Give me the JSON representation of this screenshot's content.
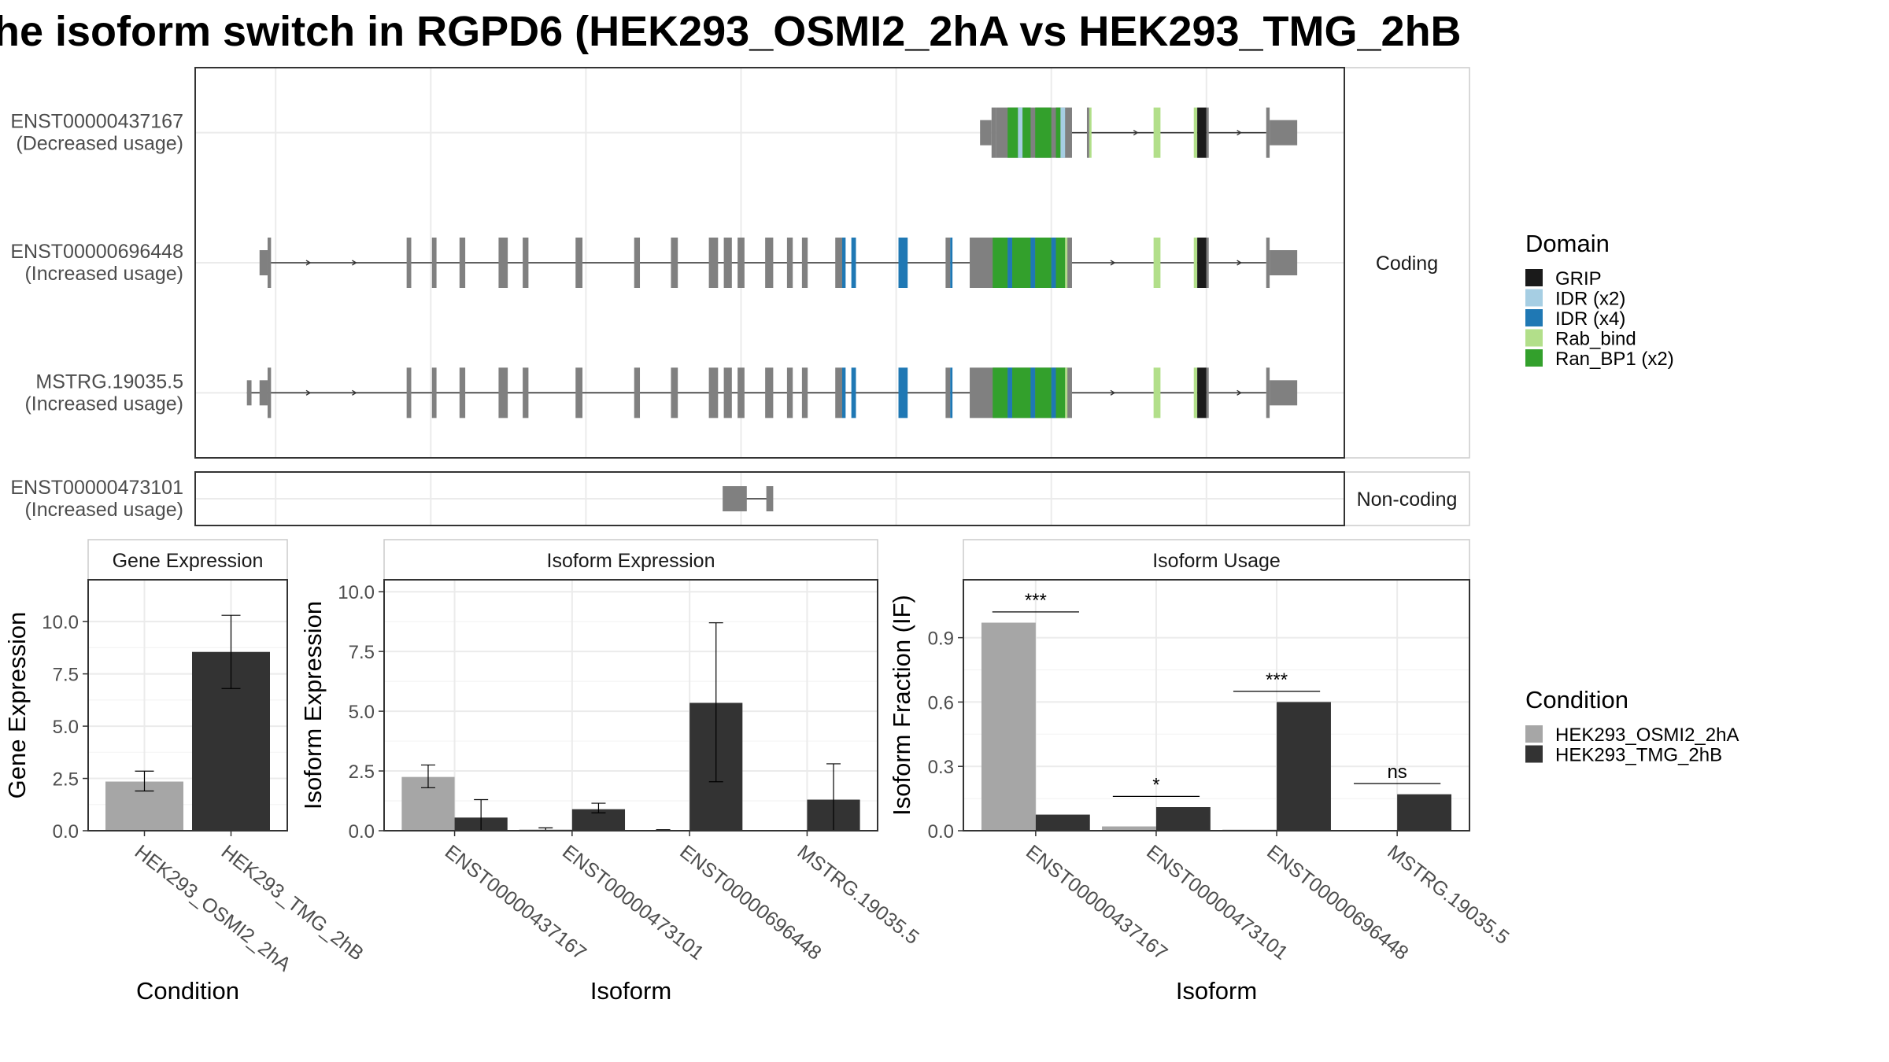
{
  "title": "he isoform switch in RGPD6 (HEK293_OSMI2_2hA vs HEK293_TMG_2hB",
  "colors": {
    "structure": "#808080",
    "cond_a": "#a6a6a6",
    "cond_b": "#333333",
    "panel_border": "#333333",
    "grid": "#ebebeb",
    "strip_bg": "#ffffff"
  },
  "legends": {
    "domain": {
      "title": "Domain",
      "items": [
        {
          "label": "GRIP",
          "color": "#1a1a1a"
        },
        {
          "label": "IDR (x2)",
          "color": "#a6cee3"
        },
        {
          "label": "IDR (x4)",
          "color": "#1f78b4"
        },
        {
          "label": "Rab_bind",
          "color": "#b2df8a"
        },
        {
          "label": "Ran_BP1 (x2)",
          "color": "#33a02c"
        }
      ]
    },
    "condition": {
      "title": "Condition",
      "items": [
        {
          "label": "HEK293_OSMI2_2hA",
          "color": "#a6a6a6"
        },
        {
          "label": "HEK293_TMG_2hB",
          "color": "#333333"
        }
      ]
    }
  },
  "chart_data": [
    {
      "type": "gene_structure",
      "facets": [
        "Coding",
        "Non-coding"
      ],
      "x_gridlines": [
        0.07,
        0.205,
        0.34,
        0.475,
        0.61,
        0.745,
        0.88
      ],
      "transcripts": [
        {
          "id": "ENST00000437167",
          "label": "ENST00000437167",
          "usage": "(Decreased usage)",
          "facet": "Coding",
          "line": [
            0.703,
            0.932
          ],
          "arrows": [
            0.82,
            0.91
          ],
          "blocks": [
            {
              "x0": 0.683,
              "x1": 0.693,
              "h": "utr",
              "c": "structure"
            },
            {
              "x0": 0.693,
              "x1": 0.697,
              "h": "cds",
              "c": "structure"
            },
            {
              "x0": 0.697,
              "x1": 0.763,
              "h": "cds",
              "c": "structure"
            },
            {
              "x0": 0.707,
              "x1": 0.716,
              "h": "cds",
              "c": "ran"
            },
            {
              "x0": 0.716,
              "x1": 0.72,
              "h": "cds",
              "c": "idr2"
            },
            {
              "x0": 0.72,
              "x1": 0.727,
              "h": "cds",
              "c": "ran"
            },
            {
              "x0": 0.731,
              "x1": 0.745,
              "h": "cds",
              "c": "ran"
            },
            {
              "x0": 0.749,
              "x1": 0.753,
              "h": "cds",
              "c": "ran"
            },
            {
              "x0": 0.753,
              "x1": 0.757,
              "h": "cds",
              "c": "idr2"
            },
            {
              "x0": 0.776,
              "x1": 0.778,
              "h": "cds",
              "c": "structure"
            },
            {
              "x0": 0.778,
              "x1": 0.78,
              "h": "cds",
              "c": "rab"
            },
            {
              "x0": 0.834,
              "x1": 0.84,
              "h": "cds",
              "c": "rab"
            },
            {
              "x0": 0.869,
              "x1": 0.872,
              "h": "cds",
              "c": "rab"
            },
            {
              "x0": 0.872,
              "x1": 0.88,
              "h": "cds",
              "c": "grip"
            },
            {
              "x0": 0.88,
              "x1": 0.882,
              "h": "cds",
              "c": "structure"
            },
            {
              "x0": 0.932,
              "x1": 0.935,
              "h": "cds",
              "c": "structure"
            },
            {
              "x0": 0.935,
              "x1": 0.959,
              "h": "utr",
              "c": "structure"
            }
          ]
        },
        {
          "id": "ENST00000696448",
          "label": "ENST00000696448",
          "usage": "(Increased usage)",
          "facet": "Coding",
          "line": [
            0.063,
            0.932
          ],
          "arrows": [
            0.1,
            0.14,
            0.8,
            0.84,
            0.91
          ],
          "blocks": [
            {
              "x0": 0.056,
              "x1": 0.063,
              "h": "utr",
              "c": "structure"
            },
            {
              "x0": 0.063,
              "x1": 0.066,
              "h": "cds",
              "c": "structure"
            },
            {
              "x0": 0.184,
              "x1": 0.188,
              "h": "cds",
              "c": "structure"
            },
            {
              "x0": 0.206,
              "x1": 0.21,
              "h": "cds",
              "c": "structure"
            },
            {
              "x0": 0.23,
              "x1": 0.235,
              "h": "cds",
              "c": "structure"
            },
            {
              "x0": 0.264,
              "x1": 0.272,
              "h": "cds",
              "c": "structure"
            },
            {
              "x0": 0.285,
              "x1": 0.29,
              "h": "cds",
              "c": "structure"
            },
            {
              "x0": 0.331,
              "x1": 0.337,
              "h": "cds",
              "c": "structure"
            },
            {
              "x0": 0.382,
              "x1": 0.387,
              "h": "cds",
              "c": "structure"
            },
            {
              "x0": 0.414,
              "x1": 0.42,
              "h": "cds",
              "c": "structure"
            },
            {
              "x0": 0.447,
              "x1": 0.455,
              "h": "cds",
              "c": "structure"
            },
            {
              "x0": 0.46,
              "x1": 0.467,
              "h": "cds",
              "c": "structure"
            },
            {
              "x0": 0.472,
              "x1": 0.478,
              "h": "cds",
              "c": "structure"
            },
            {
              "x0": 0.496,
              "x1": 0.503,
              "h": "cds",
              "c": "structure"
            },
            {
              "x0": 0.515,
              "x1": 0.52,
              "h": "cds",
              "c": "structure"
            },
            {
              "x0": 0.528,
              "x1": 0.533,
              "h": "cds",
              "c": "structure"
            },
            {
              "x0": 0.557,
              "x1": 0.563,
              "h": "cds",
              "c": "structure"
            },
            {
              "x0": 0.563,
              "x1": 0.566,
              "h": "cds",
              "c": "idr4"
            },
            {
              "x0": 0.571,
              "x1": 0.575,
              "h": "cds",
              "c": "idr4"
            },
            {
              "x0": 0.612,
              "x1": 0.62,
              "h": "cds",
              "c": "idr4"
            },
            {
              "x0": 0.653,
              "x1": 0.657,
              "h": "cds",
              "c": "structure"
            },
            {
              "x0": 0.657,
              "x1": 0.659,
              "h": "cds",
              "c": "idr4"
            },
            {
              "x0": 0.674,
              "x1": 0.763,
              "h": "cds",
              "c": "structure"
            },
            {
              "x0": 0.694,
              "x1": 0.707,
              "h": "cds",
              "c": "ran"
            },
            {
              "x0": 0.707,
              "x1": 0.711,
              "h": "cds",
              "c": "idr4"
            },
            {
              "x0": 0.711,
              "x1": 0.727,
              "h": "cds",
              "c": "ran"
            },
            {
              "x0": 0.727,
              "x1": 0.731,
              "h": "cds",
              "c": "idr4"
            },
            {
              "x0": 0.731,
              "x1": 0.745,
              "h": "cds",
              "c": "ran"
            },
            {
              "x0": 0.745,
              "x1": 0.749,
              "h": "cds",
              "c": "idr4"
            },
            {
              "x0": 0.749,
              "x1": 0.757,
              "h": "cds",
              "c": "ran"
            },
            {
              "x0": 0.757,
              "x1": 0.759,
              "h": "cds",
              "c": "rab"
            },
            {
              "x0": 0.834,
              "x1": 0.84,
              "h": "cds",
              "c": "rab"
            },
            {
              "x0": 0.869,
              "x1": 0.872,
              "h": "cds",
              "c": "rab"
            },
            {
              "x0": 0.872,
              "x1": 0.88,
              "h": "cds",
              "c": "grip"
            },
            {
              "x0": 0.88,
              "x1": 0.882,
              "h": "cds",
              "c": "structure"
            },
            {
              "x0": 0.932,
              "x1": 0.935,
              "h": "cds",
              "c": "structure"
            },
            {
              "x0": 0.935,
              "x1": 0.959,
              "h": "utr",
              "c": "structure"
            }
          ]
        },
        {
          "id": "MSTRG.19035.5",
          "label": "MSTRG.19035.5",
          "usage": "(Increased usage)",
          "facet": "Coding",
          "line": [
            0.045,
            0.932
          ],
          "arrows": [
            0.1,
            0.14,
            0.8,
            0.84,
            0.91
          ],
          "blocks": [
            {
              "x0": 0.045,
              "x1": 0.049,
              "h": "utr",
              "c": "structure"
            },
            {
              "x0": 0.056,
              "x1": 0.063,
              "h": "utr",
              "c": "structure"
            },
            {
              "x0": 0.063,
              "x1": 0.066,
              "h": "cds",
              "c": "structure"
            },
            {
              "x0": 0.184,
              "x1": 0.188,
              "h": "cds",
              "c": "structure"
            },
            {
              "x0": 0.206,
              "x1": 0.21,
              "h": "cds",
              "c": "structure"
            },
            {
              "x0": 0.23,
              "x1": 0.235,
              "h": "cds",
              "c": "structure"
            },
            {
              "x0": 0.264,
              "x1": 0.272,
              "h": "cds",
              "c": "structure"
            },
            {
              "x0": 0.285,
              "x1": 0.29,
              "h": "cds",
              "c": "structure"
            },
            {
              "x0": 0.331,
              "x1": 0.337,
              "h": "cds",
              "c": "structure"
            },
            {
              "x0": 0.382,
              "x1": 0.387,
              "h": "cds",
              "c": "structure"
            },
            {
              "x0": 0.414,
              "x1": 0.42,
              "h": "cds",
              "c": "structure"
            },
            {
              "x0": 0.447,
              "x1": 0.455,
              "h": "cds",
              "c": "structure"
            },
            {
              "x0": 0.46,
              "x1": 0.467,
              "h": "cds",
              "c": "structure"
            },
            {
              "x0": 0.472,
              "x1": 0.478,
              "h": "cds",
              "c": "structure"
            },
            {
              "x0": 0.496,
              "x1": 0.503,
              "h": "cds",
              "c": "structure"
            },
            {
              "x0": 0.515,
              "x1": 0.52,
              "h": "cds",
              "c": "structure"
            },
            {
              "x0": 0.528,
              "x1": 0.533,
              "h": "cds",
              "c": "structure"
            },
            {
              "x0": 0.557,
              "x1": 0.563,
              "h": "cds",
              "c": "structure"
            },
            {
              "x0": 0.563,
              "x1": 0.566,
              "h": "cds",
              "c": "idr4"
            },
            {
              "x0": 0.571,
              "x1": 0.575,
              "h": "cds",
              "c": "idr4"
            },
            {
              "x0": 0.612,
              "x1": 0.62,
              "h": "cds",
              "c": "idr4"
            },
            {
              "x0": 0.653,
              "x1": 0.657,
              "h": "cds",
              "c": "structure"
            },
            {
              "x0": 0.657,
              "x1": 0.659,
              "h": "cds",
              "c": "idr4"
            },
            {
              "x0": 0.674,
              "x1": 0.763,
              "h": "cds",
              "c": "structure"
            },
            {
              "x0": 0.694,
              "x1": 0.707,
              "h": "cds",
              "c": "ran"
            },
            {
              "x0": 0.707,
              "x1": 0.711,
              "h": "cds",
              "c": "idr4"
            },
            {
              "x0": 0.711,
              "x1": 0.727,
              "h": "cds",
              "c": "ran"
            },
            {
              "x0": 0.727,
              "x1": 0.731,
              "h": "cds",
              "c": "idr4"
            },
            {
              "x0": 0.731,
              "x1": 0.745,
              "h": "cds",
              "c": "ran"
            },
            {
              "x0": 0.745,
              "x1": 0.749,
              "h": "cds",
              "c": "idr4"
            },
            {
              "x0": 0.749,
              "x1": 0.757,
              "h": "cds",
              "c": "ran"
            },
            {
              "x0": 0.757,
              "x1": 0.759,
              "h": "cds",
              "c": "rab"
            },
            {
              "x0": 0.834,
              "x1": 0.84,
              "h": "cds",
              "c": "rab"
            },
            {
              "x0": 0.869,
              "x1": 0.872,
              "h": "cds",
              "c": "rab"
            },
            {
              "x0": 0.872,
              "x1": 0.88,
              "h": "cds",
              "c": "grip"
            },
            {
              "x0": 0.88,
              "x1": 0.882,
              "h": "cds",
              "c": "structure"
            },
            {
              "x0": 0.932,
              "x1": 0.935,
              "h": "cds",
              "c": "structure"
            },
            {
              "x0": 0.935,
              "x1": 0.959,
              "h": "utr",
              "c": "structure"
            }
          ]
        },
        {
          "id": "ENST00000473101",
          "label": "ENST00000473101",
          "usage": "(Increased usage)",
          "facet": "Non-coding",
          "line": [
            0.46,
            0.5
          ],
          "arrows": [],
          "blocks": [
            {
              "x0": 0.459,
              "x1": 0.48,
              "h": "utr",
              "c": "structure"
            },
            {
              "x0": 0.497,
              "x1": 0.503,
              "h": "utr",
              "c": "structure"
            }
          ]
        }
      ]
    },
    {
      "type": "bar",
      "panel": "Gene Expression",
      "categories": [
        "HEK293_OSMI2_2hA",
        "HEK293_TMG_2hB"
      ],
      "values": [
        2.35,
        8.55
      ],
      "error_low": [
        1.9,
        6.8
      ],
      "error_high": [
        2.85,
        10.3
      ],
      "xlabel": "Condition",
      "ylabel": "Gene Expression",
      "ylim": [
        0,
        12
      ],
      "yticks": [
        "0.0",
        "2.5",
        "5.0",
        "7.5",
        "10.0"
      ]
    },
    {
      "type": "bar",
      "panel": "Isoform Expression",
      "categories": [
        "ENST00000437167",
        "ENST00000473101",
        "ENST00000696448",
        "MSTRG.19035.5"
      ],
      "series": [
        {
          "name": "HEK293_OSMI2_2hA",
          "values": [
            2.25,
            0.05,
            0.02,
            0.0
          ],
          "error_low": [
            1.8,
            0.0,
            0.0,
            0.0
          ],
          "error_high": [
            2.75,
            0.12,
            0.04,
            0.0
          ]
        },
        {
          "name": "HEK293_TMG_2hB",
          "values": [
            0.55,
            0.9,
            5.35,
            1.3
          ],
          "error_low": [
            0.0,
            0.75,
            2.05,
            0.0
          ],
          "error_high": [
            1.3,
            1.15,
            8.7,
            2.8
          ]
        }
      ],
      "xlabel": "Isoform",
      "ylabel": "Isoform Expression",
      "ylim": [
        0,
        10.5
      ],
      "yticks": [
        "0.0",
        "2.5",
        "5.0",
        "7.5",
        "10.0"
      ]
    },
    {
      "type": "bar",
      "panel": "Isoform Usage",
      "categories": [
        "ENST00000437167",
        "ENST00000473101",
        "ENST00000696448",
        "MSTRG.19035.5"
      ],
      "series": [
        {
          "name": "HEK293_OSMI2_2hA",
          "values": [
            0.97,
            0.02,
            0.005,
            0.0
          ]
        },
        {
          "name": "HEK293_TMG_2hB",
          "values": [
            0.075,
            0.11,
            0.6,
            0.17
          ]
        }
      ],
      "significance": [
        {
          "label": "***",
          "y": 1.02
        },
        {
          "label": "*",
          "y": 0.16
        },
        {
          "label": "***",
          "y": 0.65
        },
        {
          "label": "ns",
          "y": 0.22
        }
      ],
      "xlabel": "Isoform",
      "ylabel": "Isoform Fraction (IF)",
      "ylim": [
        0,
        1.17
      ],
      "yticks": [
        "0.0",
        "0.3",
        "0.6",
        "0.9"
      ]
    }
  ]
}
